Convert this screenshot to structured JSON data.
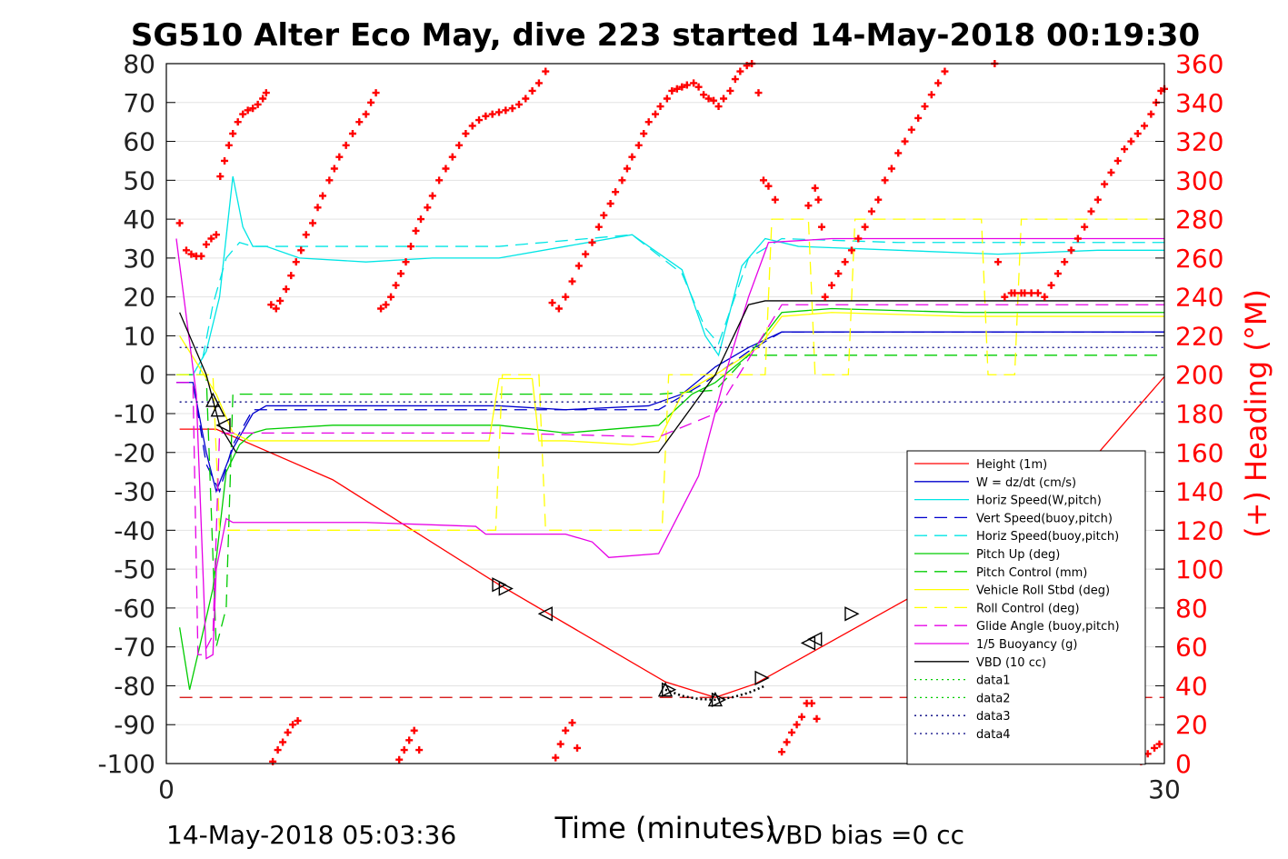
{
  "chart_data": {
    "type": "line",
    "title": "SG510 Alter Eco May, dive 223 started 14-May-2018 00:19:30",
    "xlabel": "Time (minutes)",
    "ylabel_right": "(+) Heading (°M)",
    "xlim": [
      0,
      30
    ],
    "ylim_left": [
      -100,
      80
    ],
    "ylim_right": [
      0,
      360
    ],
    "x_ticks": [
      0,
      30
    ],
    "y_ticks_left": [
      80,
      70,
      60,
      50,
      40,
      30,
      20,
      10,
      0,
      -10,
      -20,
      -30,
      -40,
      -50,
      -60,
      -70,
      -80,
      -90,
      -100
    ],
    "y_ticks_right": [
      360,
      340,
      320,
      300,
      280,
      260,
      240,
      220,
      200,
      180,
      160,
      140,
      120,
      100,
      80,
      60,
      40,
      20,
      0
    ],
    "grid": true,
    "legend_position": "lower-right",
    "footer_left": "14-May-2018 05:03:36",
    "footer_right": "VBD bias =0 cc",
    "series": [
      {
        "name": "Height (1m)",
        "color": "#ff0000",
        "dash": "solid",
        "x": [
          0.4,
          1.5,
          5,
          10,
          15,
          16.5,
          17.7,
          22,
          26,
          30
        ],
        "y": [
          -14,
          -14,
          -27,
          -54,
          -79,
          -83,
          -79.5,
          -59,
          -40,
          -0.5
        ]
      },
      {
        "name": "W = dz/dt (cm/s)",
        "color": "#0000cd",
        "dash": "solid",
        "x": [
          0.3,
          0.8,
          1.2,
          1.5,
          2.0,
          2.6,
          3,
          5,
          8,
          10,
          12,
          14.5,
          15.5,
          16.5,
          17.5,
          18.5,
          20,
          24,
          30
        ],
        "y": [
          -2,
          -2,
          -20,
          -30,
          -19,
          -10,
          -8,
          -8,
          -8,
          -8,
          -9,
          -8,
          -5,
          2,
          7,
          11,
          11,
          11,
          11
        ]
      },
      {
        "name": "Horiz Speed(W,pitch)",
        "color": "#00e5e5",
        "dash": "solid",
        "x": [
          0.3,
          0.8,
          1.2,
          1.6,
          2.0,
          2.3,
          2.6,
          3,
          4,
          6,
          8,
          10,
          12,
          14,
          15.5,
          16.2,
          16.6,
          17.3,
          18,
          19,
          22,
          25,
          28,
          30
        ],
        "y": [
          0,
          0,
          6,
          20,
          51,
          38,
          33,
          33,
          30,
          29,
          30,
          30,
          33,
          36,
          27,
          10,
          5,
          28,
          35,
          33,
          32,
          31,
          32,
          32
        ]
      },
      {
        "name": "Vert Speed(buoy,pitch)",
        "color": "#0000cd",
        "dash": "dashed",
        "x": [
          0.3,
          0.8,
          1.2,
          1.6,
          2.0,
          2.6,
          3,
          8,
          12,
          14.8,
          16.2,
          17.5,
          18.5,
          20,
          24,
          28,
          30
        ],
        "y": [
          -2,
          -2,
          -23,
          -30,
          -18,
          -9,
          -9,
          -9,
          -9,
          -9,
          -2,
          6,
          11,
          11,
          11,
          11,
          11
        ]
      },
      {
        "name": "Horiz Speed(buoy,pitch)",
        "color": "#00e5e5",
        "dash": "dashed",
        "x": [
          0.3,
          1.0,
          1.4,
          1.8,
          2.2,
          2.6,
          3,
          6,
          10,
          14,
          15.5,
          16.2,
          16.6,
          17.5,
          18.5,
          22,
          26,
          30
        ],
        "y": [
          0,
          0,
          18,
          30,
          34,
          33,
          33,
          33,
          33,
          36,
          26,
          12,
          8,
          30,
          35,
          34,
          34,
          34
        ]
      },
      {
        "name": "Pitch Up (deg)",
        "color": "#00cc00",
        "dash": "solid",
        "x": [
          0.4,
          0.7,
          1.0,
          1.4,
          1.8,
          2.2,
          2.6,
          3,
          5,
          8,
          10,
          12,
          14.8,
          15.8,
          16.5,
          17.5,
          18.5,
          20,
          24,
          28,
          30
        ],
        "y": [
          -65,
          -81,
          -70,
          -55,
          -25,
          -18,
          -15,
          -14,
          -13,
          -13,
          -13,
          -15,
          -13,
          -5,
          -2,
          5,
          16,
          17,
          16,
          16,
          16
        ]
      },
      {
        "name": "Pitch Control (mm)",
        "color": "#00cc00",
        "dash": "dashed",
        "x": [
          0.4,
          1.2,
          1.5,
          1.8,
          2.0,
          2.3,
          3,
          8,
          14.8,
          16.5,
          17.5,
          18.2,
          30
        ],
        "y": [
          0,
          0,
          -70,
          -60,
          -5,
          -5,
          -5,
          -5,
          -5,
          -4,
          5,
          5,
          5
        ]
      },
      {
        "name": "Vehicle Roll Stbd (deg)",
        "color": "#ffff00",
        "dash": "solid",
        "x": [
          0.4,
          1.5,
          2.0,
          2.5,
          3,
          6,
          9.7,
          10,
          11,
          11.2,
          12,
          14,
          14.8,
          15.5,
          16.5,
          17.8,
          18.5,
          20,
          24,
          28,
          30
        ],
        "y": [
          10,
          -5,
          -15,
          -17,
          -17,
          -17,
          -17,
          -1,
          -1,
          -17,
          -17,
          -18,
          -17,
          -5,
          0,
          7,
          15,
          16,
          15,
          15,
          15
        ]
      },
      {
        "name": "Roll Control (deg)",
        "color": "#ffff00",
        "dash": "dashed",
        "x": [
          0.3,
          1.4,
          1.6,
          2.0,
          9.9,
          10.1,
          11.2,
          11.4,
          14.9,
          15.1,
          17.5,
          18,
          18.2,
          19.3,
          19.5,
          20.5,
          20.7,
          24.5,
          24.7,
          25.5,
          25.7,
          30
        ],
        "y": [
          0,
          0,
          -40,
          -40,
          -40,
          0,
          0,
          -40,
          -40,
          0,
          0,
          0,
          40,
          40,
          0,
          0,
          40,
          40,
          0,
          0,
          40,
          40
        ]
      },
      {
        "name": "Glide Angle (buoy,pitch)",
        "color": "#e600e6",
        "dash": "dashed",
        "x": [
          0.3,
          0.8,
          0.95,
          1.1,
          1.4,
          1.6,
          1.9,
          2.2,
          2.6,
          3,
          6,
          10,
          14.8,
          16.5,
          17.5,
          18.5,
          22,
          26,
          30
        ],
        "y": [
          -2,
          -2,
          -72,
          -72,
          -67,
          -15,
          -15,
          -15,
          -15,
          -15,
          -15,
          -15,
          -16,
          -10,
          4,
          18,
          18,
          18,
          18
        ]
      },
      {
        "name": "1/5 Buoyancy (g)",
        "color": "#e600e6",
        "dash": "solid",
        "x": [
          0.3,
          0.6,
          0.9,
          1.2,
          1.4,
          1.5,
          1.8,
          2.0,
          2.3,
          3,
          6,
          9.3,
          9.6,
          12,
          12.8,
          13.3,
          14.8,
          16.0,
          16.8,
          17.5,
          18.1,
          20,
          24,
          28,
          30
        ],
        "y": [
          35,
          15,
          -5,
          -73,
          -72,
          -50,
          -37,
          -38,
          -38,
          -38,
          -38,
          -39,
          -41,
          -41,
          -43,
          -47,
          -46,
          -26,
          0,
          20,
          34,
          35,
          35,
          35,
          35
        ]
      },
      {
        "name": "VBD (10 cc)",
        "color": "#000000",
        "dash": "solid",
        "x": [
          0.4,
          1.2,
          1.6,
          2.1,
          2.4,
          3,
          6,
          10,
          14.8,
          16.5,
          17.5,
          18.0,
          20,
          24,
          28,
          30
        ],
        "y": [
          16,
          0,
          -13,
          -20,
          -20,
          -20,
          -20,
          -20,
          -20,
          0,
          18,
          19,
          19,
          19,
          19,
          19
        ]
      },
      {
        "name": "data1",
        "color": "#00cc00",
        "dash": "dotted",
        "x": [],
        "y": []
      },
      {
        "name": "data2",
        "color": "#00cc00",
        "dash": "dotted",
        "x": [],
        "y": []
      },
      {
        "name": "data3",
        "color": "#000080",
        "dash": "dotted",
        "x": [
          0.4,
          30
        ],
        "y": [
          -7,
          -7
        ]
      },
      {
        "name": "data4",
        "color": "#000080",
        "dash": "dotted",
        "x": [
          0.4,
          30
        ],
        "y": [
          7,
          7
        ]
      }
    ],
    "reference_lines": [
      {
        "axis": "left",
        "y": -83,
        "color": "#d40000",
        "dash": "dashed"
      }
    ],
    "dive_curve": {
      "color": "#000000",
      "dash": "dotted",
      "x": [
        15.0,
        15.5,
        16.0,
        16.5,
        17.0,
        17.5,
        18.0
      ],
      "y": [
        -81,
        -82.6,
        -83.4,
        -83.6,
        -83.0,
        -81.8,
        -80
      ]
    },
    "heading_series": {
      "name": "(+) Heading (°M)",
      "color": "#ff0000",
      "marker": "+",
      "axis": "right",
      "x": [
        0.4,
        0.6,
        0.75,
        0.9,
        1.05,
        1.2,
        1.35,
        1.5,
        1.62,
        1.75,
        1.88,
        2.0,
        2.15,
        2.3,
        2.45,
        2.6,
        2.75,
        2.9,
        3.0,
        3.15,
        3.3,
        3.42,
        3.6,
        3.75,
        3.9,
        4.05,
        4.2,
        4.4,
        4.55,
        4.7,
        4.9,
        5.05,
        5.2,
        5.4,
        5.6,
        5.8,
        6.0,
        6.15,
        6.3,
        6.45,
        6.6,
        6.75,
        6.9,
        7.05,
        7.2,
        7.35,
        7.5,
        7.65,
        7.85,
        8.0,
        8.2,
        8.4,
        8.6,
        8.8,
        9.0,
        9.2,
        9.4,
        9.6,
        9.8,
        10.0,
        10.2,
        10.4,
        10.6,
        10.8,
        11.0,
        11.2,
        11.4,
        11.6,
        11.8,
        12.0,
        12.2,
        12.4,
        12.6,
        12.8,
        13.0,
        13.15,
        13.35,
        13.5,
        13.7,
        13.85,
        14.0,
        14.2,
        14.35,
        14.5,
        14.7,
        14.85,
        15.05,
        15.2,
        15.35,
        15.5,
        15.65,
        15.85,
        16.0,
        16.15,
        16.3,
        16.45,
        16.6,
        16.75,
        16.95,
        17.1,
        17.25,
        17.45,
        17.6,
        17.8,
        17.95,
        18.1,
        18.3,
        19.3,
        19.5,
        19.6,
        19.7,
        19.8,
        20.0,
        20.2,
        20.4,
        20.6,
        20.8,
        21.0,
        21.2,
        21.4,
        21.6,
        21.8,
        22.0,
        22.2,
        22.4,
        22.6,
        22.8,
        23.0,
        23.2,
        23.4,
        24.9,
        25.0,
        25.2,
        25.4,
        25.5,
        25.7,
        25.8,
        26.0,
        26.2,
        26.4,
        26.6,
        26.8,
        27.0,
        27.2,
        27.4,
        27.6,
        27.8,
        28.0,
        28.2,
        28.4,
        28.6,
        28.8,
        29.0,
        29.2,
        29.4,
        29.6,
        29.75,
        29.9,
        30.0
      ],
      "y": [
        278,
        264,
        262,
        261,
        261,
        267,
        270,
        272,
        302,
        310,
        318,
        324,
        330,
        334,
        336,
        337,
        339,
        342,
        345,
        236,
        234,
        238,
        244,
        251,
        258,
        264,
        272,
        278,
        286,
        292,
        300,
        306,
        312,
        318,
        324,
        330,
        334,
        340,
        345,
        234,
        236,
        240,
        246,
        252,
        258,
        266,
        274,
        280,
        286,
        292,
        300,
        306,
        312,
        318,
        324,
        328,
        331,
        333,
        334,
        335,
        336,
        337,
        339,
        342,
        346,
        350,
        356,
        237,
        234,
        240,
        248,
        256,
        262,
        268,
        276,
        282,
        288,
        294,
        300,
        306,
        312,
        318,
        324,
        330,
        334,
        338,
        342,
        346,
        347,
        348,
        349,
        350,
        348,
        344,
        342,
        341,
        338,
        342,
        346,
        352,
        356,
        359,
        360,
        345,
        300,
        297,
        290,
        287,
        296,
        290,
        276,
        240,
        246,
        252,
        258,
        264,
        270,
        276,
        284,
        290,
        300,
        306,
        314,
        320,
        326,
        332,
        338,
        344,
        350,
        356,
        360,
        258,
        240,
        242,
        242,
        242,
        242,
        242,
        242,
        240,
        246,
        252,
        258,
        264,
        270,
        276,
        284,
        290,
        298,
        304,
        310,
        316,
        320,
        324,
        328,
        334,
        340,
        346,
        347
      ],
      "x_low": [
        3.2,
        3.35,
        3.5,
        3.65,
        3.8,
        3.95,
        7.0,
        7.15,
        7.3,
        7.45,
        7.6,
        11.7,
        11.85,
        12.0,
        12.2,
        12.35,
        18.5,
        18.65,
        18.8,
        18.95,
        19.1,
        19.25,
        19.4,
        19.55,
        24.0,
        29.3,
        29.5,
        29.7,
        29.85
      ],
      "y_low": [
        1,
        7,
        11,
        16,
        20,
        22,
        2,
        7,
        12,
        17,
        7,
        3,
        10,
        17,
        21,
        8,
        6,
        11,
        16,
        20,
        24,
        31,
        31,
        23,
        8,
        1,
        5,
        8,
        10
      ]
    }
  }
}
